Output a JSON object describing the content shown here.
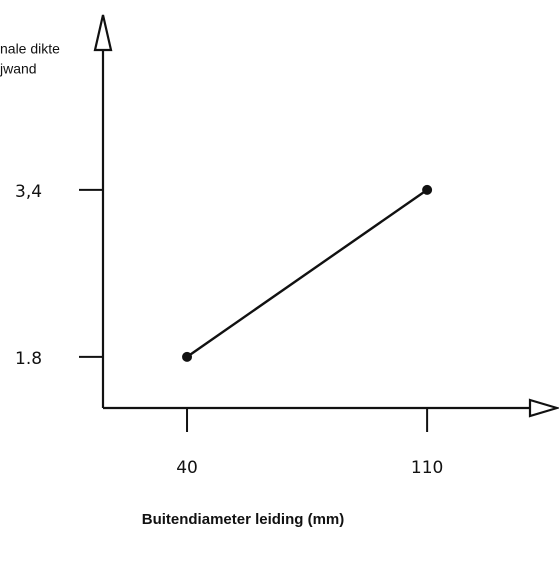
{
  "chart_data": {
    "type": "line",
    "y_label_lines": [
      "nale  dikte",
      "jwand"
    ],
    "x_label": "Buitendiameter leiding (mm)",
    "x": [
      40,
      110
    ],
    "series": [
      {
        "color": "#111111",
        "values": [
          1.8,
          3.4
        ]
      }
    ],
    "xlim": [
      15.5,
      140
    ],
    "xticks": [
      40,
      110
    ],
    "ylim": [
      1.31,
      4.74
    ],
    "yticks": [
      1.8,
      {
        "value": 3.4,
        "label": "3,4"
      }
    ]
  }
}
